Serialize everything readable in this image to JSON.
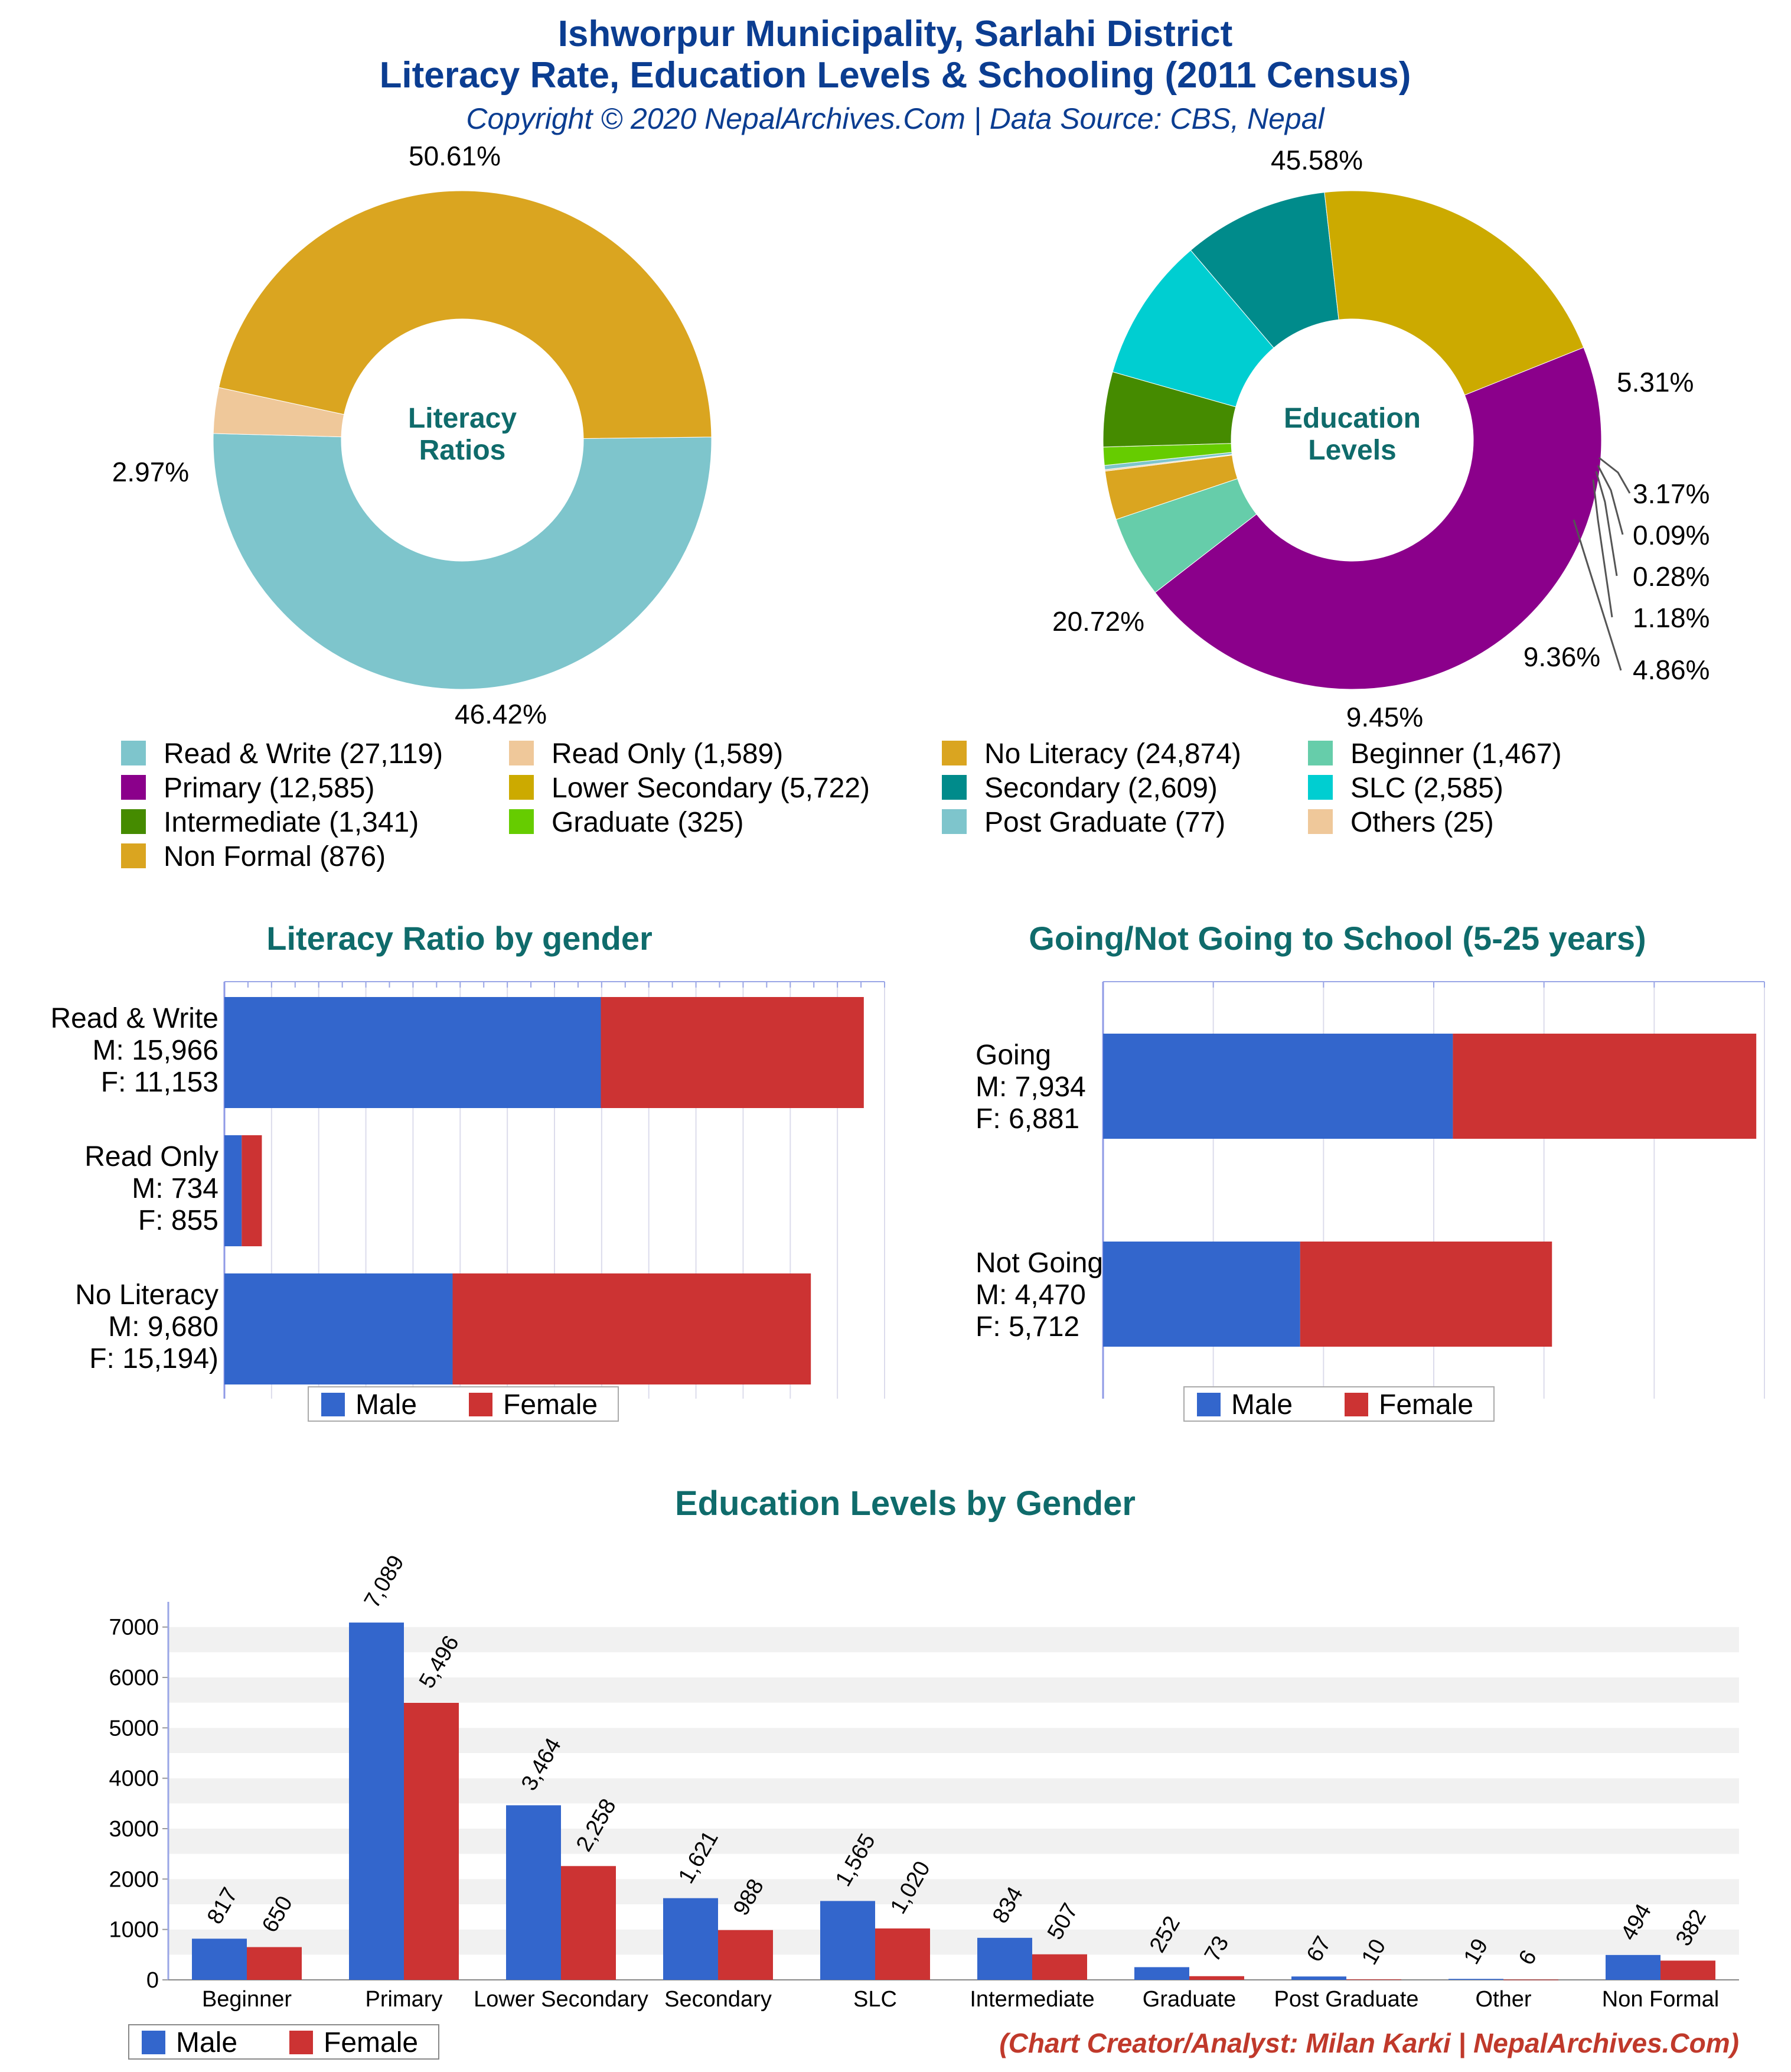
{
  "header": {
    "title_line1": "Ishworpur Municipality, Sarlahi District",
    "title_line2": "Literacy Rate, Education Levels & Schooling (2011 Census)",
    "subtitle": "Copyright © 2020 NepalArchives.Com | Data Source: CBS, Nepal"
  },
  "colors": {
    "male": "#3366cc",
    "female": "#cc3333",
    "title": "#0b3d91",
    "section": "#0f6b6b",
    "credit": "#c0392b"
  },
  "chart_data": [
    {
      "id": "literacy_ratios",
      "type": "pie",
      "center_label": [
        "Literacy",
        "Ratios"
      ],
      "slices": [
        {
          "name": "Read & Write",
          "value": 27119,
          "percent_label": "50.61%",
          "color": "#7ec5cc"
        },
        {
          "name": "Read Only",
          "value": 1589,
          "percent_label": "2.97%",
          "color": "#efc89a"
        },
        {
          "name": "No Literacy",
          "value": 24874,
          "percent_label": "46.42%",
          "color": "#daa520"
        }
      ]
    },
    {
      "id": "education_levels",
      "type": "pie",
      "center_label": [
        "Education",
        "Levels"
      ],
      "slices": [
        {
          "name": "Primary",
          "value": 12585,
          "percent_label": "45.58%",
          "color": "#8b008b"
        },
        {
          "name": "Beginner",
          "value": 1467,
          "percent_label": "5.31%",
          "color": "#66cdaa"
        },
        {
          "name": "Non Formal",
          "value": 876,
          "percent_label": "3.17%",
          "color": "#daa520"
        },
        {
          "name": "Others",
          "value": 25,
          "percent_label": "0.09%",
          "color": "#efc89a"
        },
        {
          "name": "Post Graduate",
          "value": 77,
          "percent_label": "0.28%",
          "color": "#7ec5cc"
        },
        {
          "name": "Graduate",
          "value": 325,
          "percent_label": "1.18%",
          "color": "#66cc00"
        },
        {
          "name": "Intermediate",
          "value": 1341,
          "percent_label": "4.86%",
          "color": "#458b00"
        },
        {
          "name": "SLC",
          "value": 2585,
          "percent_label": "9.36%",
          "color": "#00ced1"
        },
        {
          "name": "Secondary",
          "value": 2609,
          "percent_label": "9.45%",
          "color": "#008b8b"
        },
        {
          "name": "Lower Secondary",
          "value": 5722,
          "percent_label": "20.72%",
          "color": "#ccaa00"
        }
      ]
    },
    {
      "id": "literacy_by_gender",
      "type": "bar",
      "orientation": "horizontal",
      "stacked": true,
      "title": "Literacy Ratio by gender",
      "categories": [
        {
          "lines": [
            "Read & Write",
            "M: 15,966",
            "F: 11,153"
          ]
        },
        {
          "lines": [
            "Read Only",
            "M: 734",
            "F: 855"
          ]
        },
        {
          "lines": [
            "No Literacy",
            "M: 9,680",
            "F: 15,194)"
          ]
        }
      ],
      "series": [
        {
          "name": "Male",
          "values": [
            15966,
            734,
            9680
          ]
        },
        {
          "name": "Female",
          "values": [
            11153,
            855,
            15194
          ]
        }
      ],
      "xlim": [
        0,
        28000
      ],
      "legend": [
        "Male",
        "Female"
      ]
    },
    {
      "id": "school_attendance",
      "type": "bar",
      "orientation": "horizontal",
      "stacked": true,
      "title": "Going/Not Going to School (5-25 years)",
      "categories": [
        {
          "lines": [
            "Going",
            "M: 7,934",
            "F: 6,881"
          ]
        },
        {
          "lines": [
            "Not Going",
            "M: 4,470",
            "F: 5,712"
          ]
        }
      ],
      "series": [
        {
          "name": "Male",
          "values": [
            7934,
            4470
          ]
        },
        {
          "name": "Female",
          "values": [
            6881,
            5712
          ]
        }
      ],
      "xlim": [
        0,
        15000
      ],
      "legend": [
        "Male",
        "Female"
      ]
    },
    {
      "id": "education_by_gender",
      "type": "bar",
      "orientation": "vertical",
      "title": "Education Levels by Gender",
      "categories": [
        "Beginner",
        "Primary",
        "Lower Secondary",
        "Secondary",
        "SLC",
        "Intermediate",
        "Graduate",
        "Post Graduate",
        "Other",
        "Non Formal"
      ],
      "series": [
        {
          "name": "Male",
          "values": [
            817,
            7089,
            3464,
            1621,
            1565,
            834,
            252,
            67,
            19,
            494
          ],
          "labels": [
            "817",
            "7,089",
            "3,464",
            "1,621",
            "1,565",
            "834",
            "252",
            "67",
            "19",
            "494"
          ]
        },
        {
          "name": "Female",
          "values": [
            650,
            5496,
            2258,
            988,
            1020,
            507,
            73,
            10,
            6,
            382
          ],
          "labels": [
            "650",
            "5,496",
            "2,258",
            "988",
            "1,020",
            "507",
            "73",
            "10",
            "6",
            "382"
          ]
        }
      ],
      "ylim": [
        0,
        7500
      ],
      "yticks": [
        "0",
        "1000",
        "2000",
        "3000",
        "4000",
        "5000",
        "6000",
        "7000"
      ],
      "legend": [
        "Male",
        "Female"
      ]
    }
  ],
  "pie_legend": [
    {
      "label": "Read & Write (27,119)",
      "color": "#7ec5cc"
    },
    {
      "label": "Read Only (1,589)",
      "color": "#efc89a"
    },
    {
      "label": "No Literacy (24,874)",
      "color": "#daa520"
    },
    {
      "label": "Beginner (1,467)",
      "color": "#66cdaa"
    },
    {
      "label": "Primary (12,585)",
      "color": "#8b008b"
    },
    {
      "label": "Lower Secondary (5,722)",
      "color": "#ccaa00"
    },
    {
      "label": "Secondary (2,609)",
      "color": "#008b8b"
    },
    {
      "label": "SLC (2,585)",
      "color": "#00ced1"
    },
    {
      "label": "Intermediate (1,341)",
      "color": "#458b00"
    },
    {
      "label": "Graduate (325)",
      "color": "#66cc00"
    },
    {
      "label": "Post Graduate (77)",
      "color": "#7ec5cc"
    },
    {
      "label": "Others (25)",
      "color": "#efc89a"
    },
    {
      "label": "Non Formal (876)",
      "color": "#daa520"
    }
  ],
  "credit": "(Chart Creator/Analyst: Milan Karki | NepalArchives.Com)"
}
